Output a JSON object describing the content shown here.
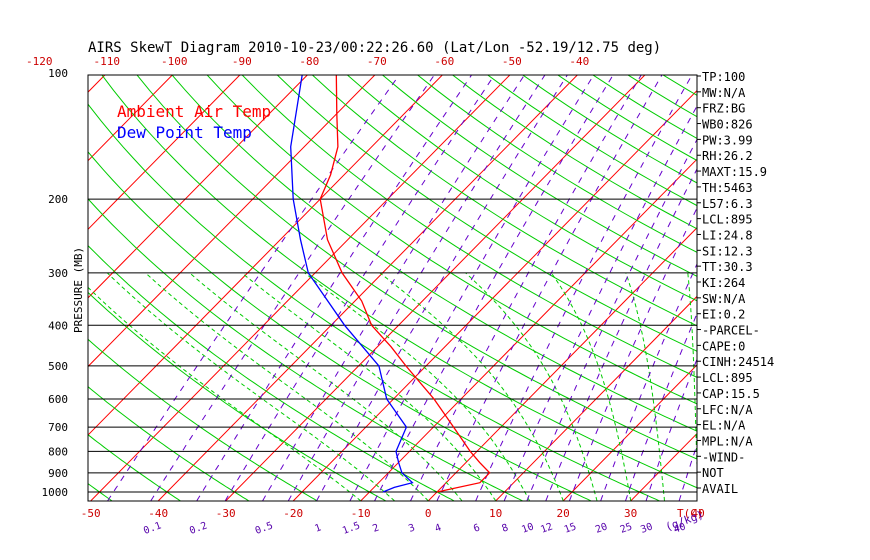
{
  "chart_data": {
    "type": "line",
    "title": "AIRS SkewT Diagram 2010-10-23/00:22:26.60 (Lat/Lon -52.19/12.75 deg)",
    "ylabel": "PRESSURE (MB)",
    "xlabel_temp_unit": "T(C)",
    "mixing_ratio_unit": "(g/kg)",
    "y_scale": "log",
    "ylim": [
      1000,
      100
    ],
    "pressure_ticks": [
      {
        "value": 100,
        "label": "100"
      },
      {
        "value": 200,
        "label": "200"
      },
      {
        "value": 300,
        "label": "300"
      },
      {
        "value": 400,
        "label": "400"
      },
      {
        "value": 500,
        "label": "500"
      },
      {
        "value": 600,
        "label": "600"
      },
      {
        "value": 700,
        "label": "700"
      },
      {
        "value": 800,
        "label": "800"
      },
      {
        "value": 900,
        "label": "900"
      },
      {
        "value": 1000,
        "label": "1000"
      }
    ],
    "bottom_temp_ticks": [
      {
        "value": -50,
        "label": "-50"
      },
      {
        "value": -40,
        "label": "-40"
      },
      {
        "value": -30,
        "label": "-30"
      },
      {
        "value": -20,
        "label": "-20"
      },
      {
        "value": -10,
        "label": "-10"
      },
      {
        "value": 0,
        "label": "0"
      },
      {
        "value": 10,
        "label": "10"
      },
      {
        "value": 20,
        "label": "20"
      },
      {
        "value": 30,
        "label": "30"
      },
      {
        "value": 40,
        "label": "40"
      }
    ],
    "top_temp_ticks": [
      {
        "value": -120,
        "label": "-120"
      },
      {
        "value": -110,
        "label": "-110"
      },
      {
        "value": -100,
        "label": "-100"
      },
      {
        "value": -90,
        "label": "-90"
      },
      {
        "value": -80,
        "label": "-80"
      },
      {
        "value": -70,
        "label": "-70"
      },
      {
        "value": -60,
        "label": "-60"
      },
      {
        "value": -50,
        "label": "-50"
      },
      {
        "value": -40,
        "label": "-40"
      }
    ],
    "mixing_ratio_labels": [
      {
        "value": 0.1,
        "label": "0.1"
      },
      {
        "value": 0.2,
        "label": "0.2"
      },
      {
        "value": 0.5,
        "label": "0.5"
      },
      {
        "value": 1,
        "label": "1"
      },
      {
        "value": 1.5,
        "label": "1.5"
      },
      {
        "value": 2,
        "label": "2"
      },
      {
        "value": 3,
        "label": "3"
      },
      {
        "value": 4,
        "label": "4"
      },
      {
        "value": 6,
        "label": "6"
      },
      {
        "value": 8,
        "label": "8"
      },
      {
        "value": 10,
        "label": "10"
      },
      {
        "value": 12,
        "label": "12"
      },
      {
        "value": 15,
        "label": "15"
      },
      {
        "value": 20,
        "label": "20"
      },
      {
        "value": 25,
        "label": "25"
      },
      {
        "value": 30,
        "label": "30"
      },
      {
        "value": 40,
        "label": "40"
      }
    ],
    "legend": [
      {
        "label": "Ambient Air Temp",
        "color": "#ff0000"
      },
      {
        "label": "Dew Point Temp",
        "color": "#0000ff"
      }
    ],
    "legend_position": "top-left",
    "series": [
      {
        "name": "Ambient Air Temp",
        "color": "#ff0000",
        "points": [
          {
            "p": 1000,
            "t": 0
          },
          {
            "p": 950,
            "t": 5
          },
          {
            "p": 900,
            "t": 5
          },
          {
            "p": 850,
            "t": 2
          },
          {
            "p": 800,
            "t": -1
          },
          {
            "p": 700,
            "t": -7
          },
          {
            "p": 600,
            "t": -14
          },
          {
            "p": 500,
            "t": -23
          },
          {
            "p": 450,
            "t": -28
          },
          {
            "p": 400,
            "t": -34
          },
          {
            "p": 350,
            "t": -39
          },
          {
            "p": 300,
            "t": -46
          },
          {
            "p": 250,
            "t": -53
          },
          {
            "p": 200,
            "t": -60
          },
          {
            "p": 175,
            "t": -62
          },
          {
            "p": 150,
            "t": -65
          },
          {
            "p": 125,
            "t": -70
          },
          {
            "p": 100,
            "t": -76
          }
        ]
      },
      {
        "name": "Dew Point Temp",
        "color": "#0000ff",
        "points": [
          {
            "p": 1000,
            "t": -8
          },
          {
            "p": 975,
            "t": -7
          },
          {
            "p": 950,
            "t": -5
          },
          {
            "p": 900,
            "t": -8
          },
          {
            "p": 850,
            "t": -10
          },
          {
            "p": 800,
            "t": -12
          },
          {
            "p": 700,
            "t": -14
          },
          {
            "p": 600,
            "t": -21
          },
          {
            "p": 500,
            "t": -27
          },
          {
            "p": 400,
            "t": -38
          },
          {
            "p": 300,
            "t": -51
          },
          {
            "p": 250,
            "t": -57
          },
          {
            "p": 200,
            "t": -64
          },
          {
            "p": 150,
            "t": -72
          },
          {
            "p": 100,
            "t": -81
          }
        ]
      }
    ],
    "grid": true,
    "background_lines": {
      "isotherms_color": "#ff0000",
      "dry_adiabats_color": "#00c000",
      "moist_adiabats_color": "#00c000",
      "mixing_ratio_color": "#5500aa",
      "isobars_color": "#000000"
    }
  },
  "indices": [
    "TP:100",
    "MW:N/A",
    "FRZ:BG",
    "WB0:826",
    "PW:3.99",
    "RH:26.2",
    "MAXT:15.9",
    "TH:5463",
    "L57:6.3",
    "LCL:895",
    "LI:24.8",
    "SI:12.3",
    "TT:30.3",
    "KI:264",
    "SW:N/A",
    "EI:0.2",
    "-PARCEL-",
    "CAPE:0",
    "CINH:24514",
    "LCL:895",
    "CAP:15.5",
    "LFC:N/A",
    "EL:N/A",
    "MPL:N/A",
    "-WIND-",
    "NOT",
    "AVAIL"
  ]
}
